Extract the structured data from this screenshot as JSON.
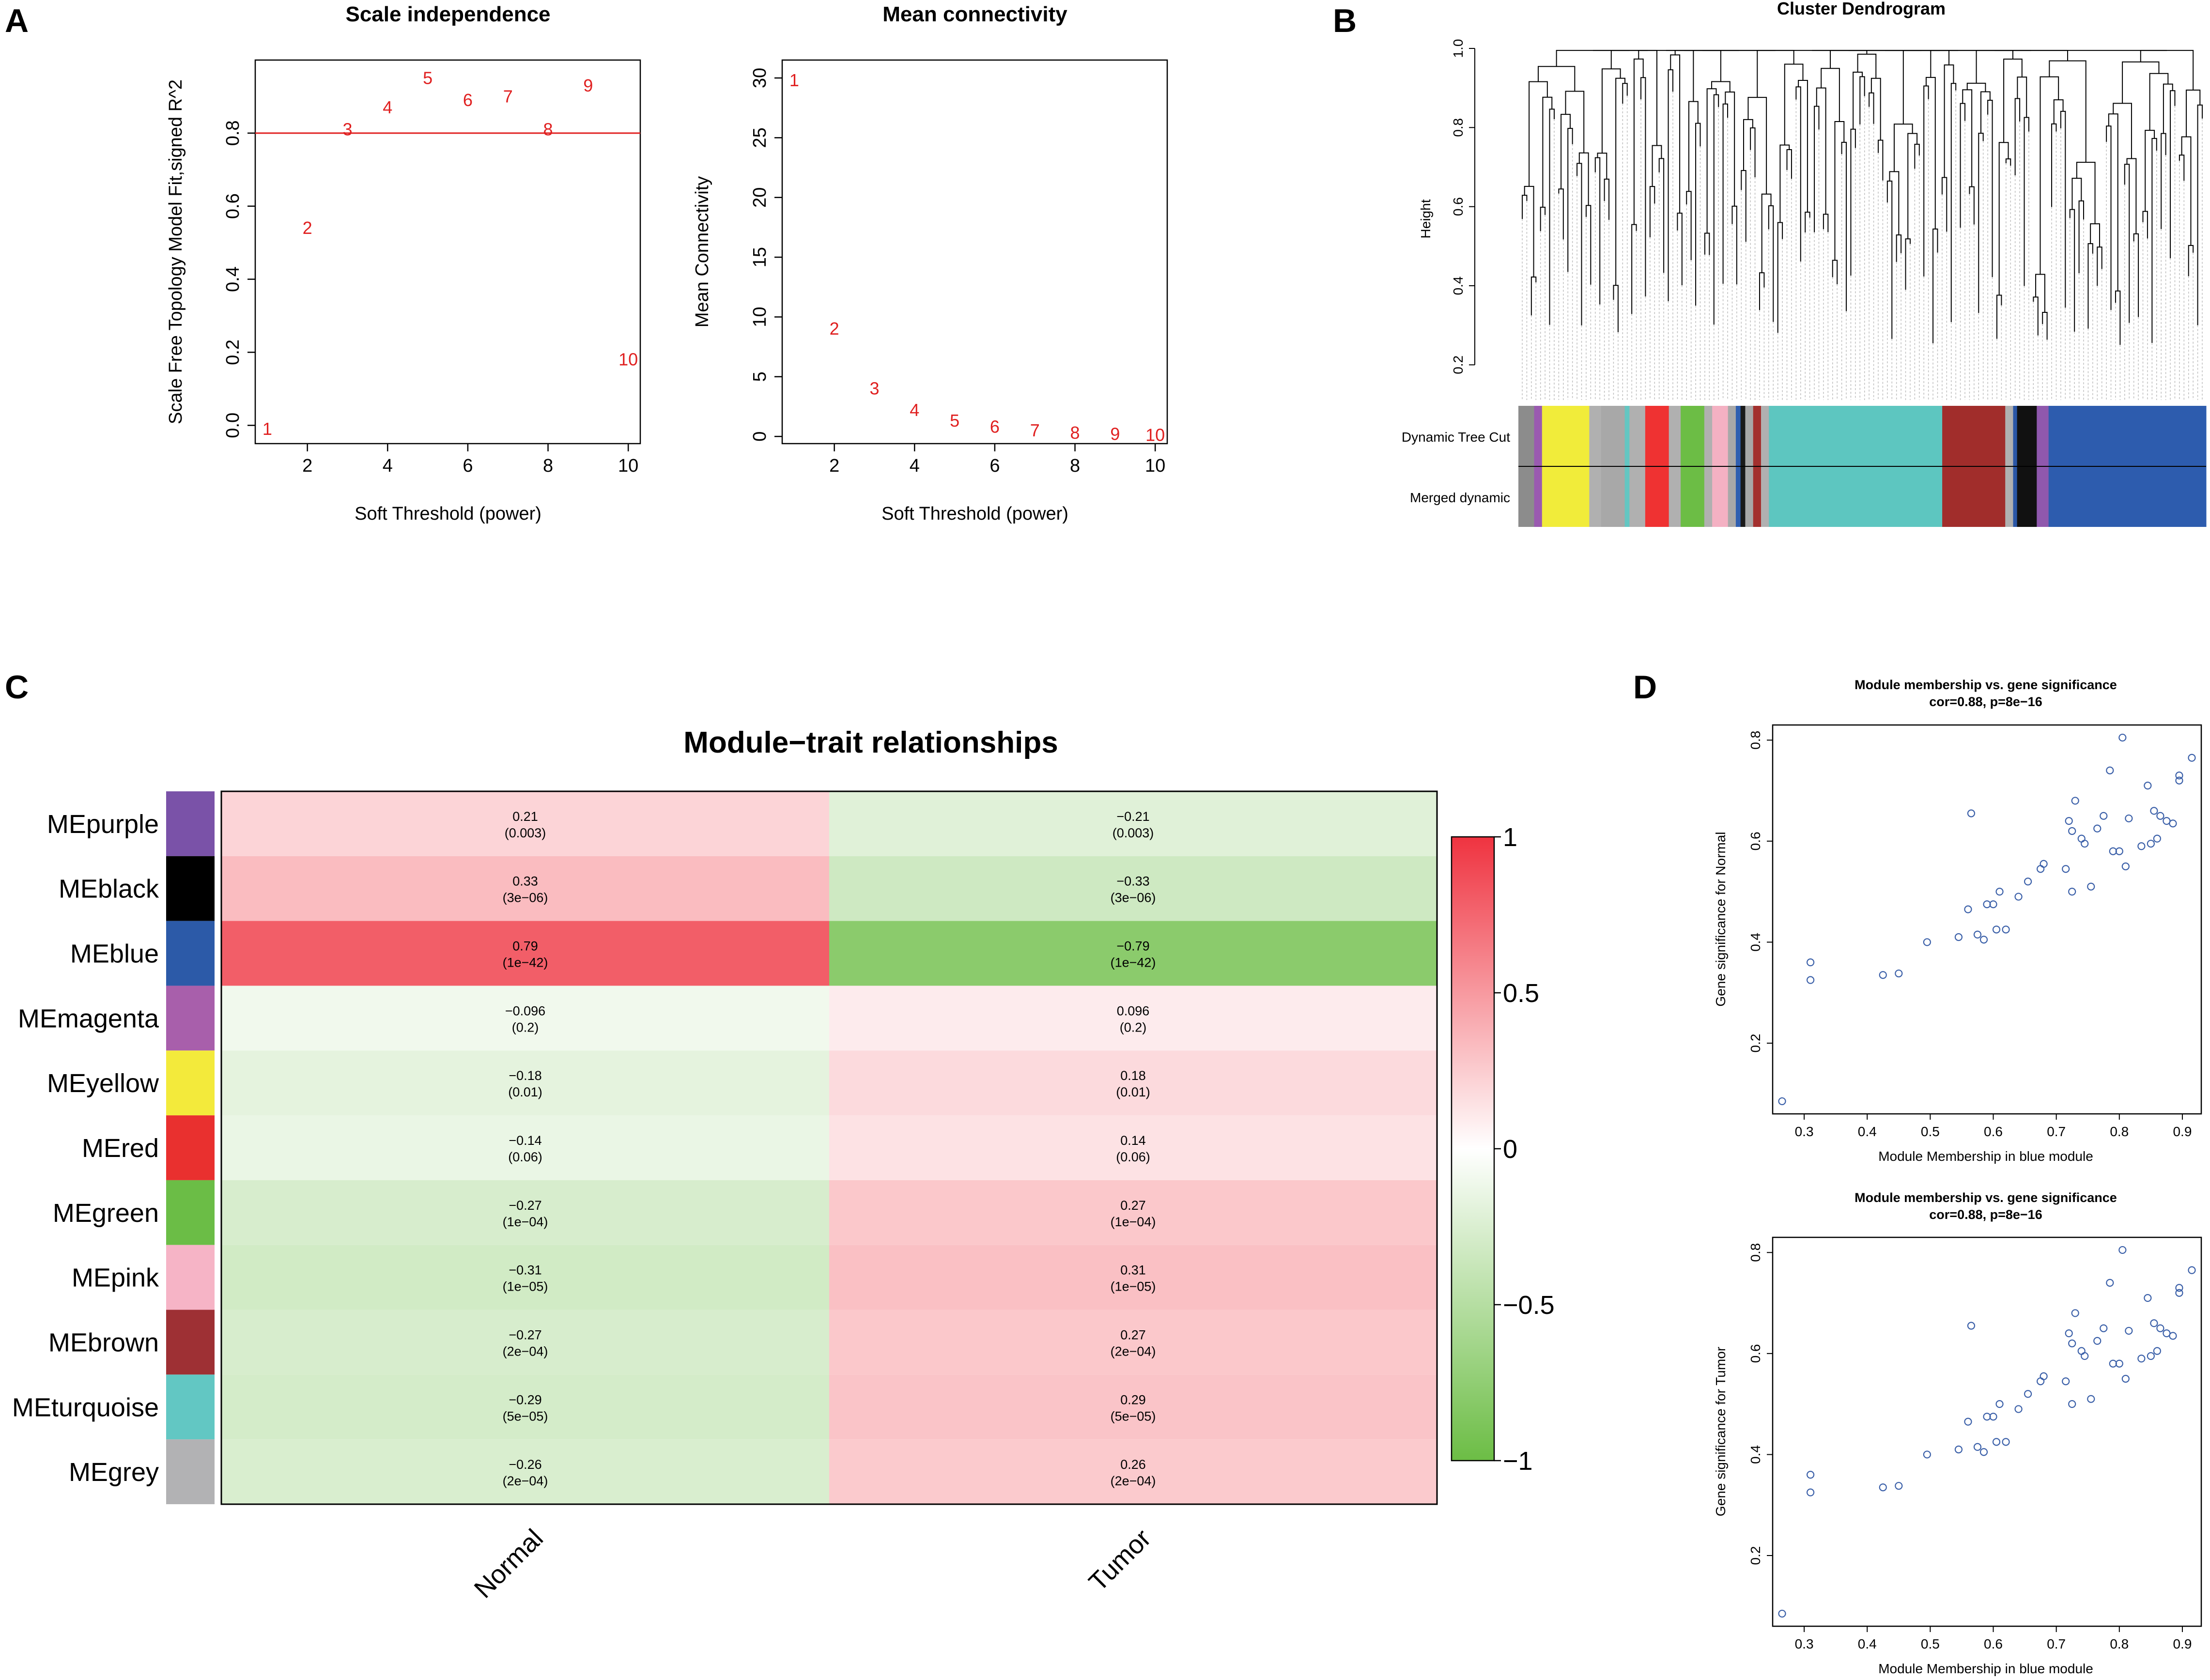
{
  "panels": {
    "a": "A",
    "b": "B",
    "c": "C",
    "d": "D"
  },
  "chart_data": [
    {
      "id": "scale_independence",
      "type": "scatter",
      "title": "Scale independence",
      "xlabel": "Soft Threshold (power)",
      "ylabel": "Scale Free Topology Model Fit,signed R^2",
      "xlim": [
        0.7,
        10.3
      ],
      "ylim": [
        -0.05,
        1.0
      ],
      "xticks": [
        2,
        4,
        6,
        8,
        10
      ],
      "yticks": [
        0.0,
        0.2,
        0.4,
        0.6,
        0.8
      ],
      "hline": 0.8,
      "point_labels": [
        "1",
        "2",
        "3",
        "4",
        "5",
        "6",
        "7",
        "8",
        "9",
        "10"
      ],
      "x": [
        1,
        2,
        3,
        4,
        5,
        6,
        7,
        8,
        9,
        10
      ],
      "y": [
        -0.01,
        0.54,
        0.81,
        0.87,
        0.95,
        0.89,
        0.9,
        0.81,
        0.93,
        0.18
      ]
    },
    {
      "id": "mean_connectivity",
      "type": "scatter",
      "title": "Mean connectivity",
      "xlabel": "Soft Threshold (power)",
      "ylabel": "Mean Connectivity",
      "xlim": [
        0.7,
        10.3
      ],
      "ylim": [
        -0.6,
        31.5
      ],
      "xticks": [
        2,
        4,
        6,
        8,
        10
      ],
      "yticks": [
        0,
        5,
        10,
        15,
        20,
        25,
        30
      ],
      "point_labels": [
        "1",
        "2",
        "3",
        "4",
        "5",
        "6",
        "7",
        "8",
        "9",
        "10"
      ],
      "x": [
        1,
        2,
        3,
        4,
        5,
        6,
        7,
        8,
        9,
        10
      ],
      "y": [
        29.8,
        9.0,
        4.0,
        2.2,
        1.3,
        0.8,
        0.5,
        0.3,
        0.2,
        0.1
      ]
    },
    {
      "id": "cluster_dendrogram",
      "type": "dendrogram",
      "title": "Cluster Dendrogram",
      "ylabel": "Height",
      "yticks": [
        0.2,
        0.4,
        0.6,
        0.8,
        1.0
      ],
      "ylim": [
        0.1,
        1.0
      ],
      "color_rows": [
        "Dynamic Tree Cut",
        "Merged dynamic"
      ],
      "module_blocks": [
        {
          "color": "#8c8c8c",
          "w": 2
        },
        {
          "color": "#9a5ab0",
          "w": 1
        },
        {
          "color": "#f1ec3a",
          "w": 6
        },
        {
          "color": "#b0b0b0",
          "w": 1.5
        },
        {
          "color": "#a8a8a8",
          "w": 3
        },
        {
          "color": "#63c6c2",
          "w": 0.6
        },
        {
          "color": "#b0b0b0",
          "w": 2
        },
        {
          "color": "#ef3232",
          "w": 3
        },
        {
          "color": "#b0b0b0",
          "w": 1.5
        },
        {
          "color": "#6cbd45",
          "w": 3
        },
        {
          "color": "#b0b0b0",
          "w": 1
        },
        {
          "color": "#f4b1c3",
          "w": 2
        },
        {
          "color": "#a8a8a8",
          "w": 1
        },
        {
          "color": "#2f5fb0",
          "w": 0.6
        },
        {
          "color": "#1a1a1a",
          "w": 0.6
        },
        {
          "color": "#a8a8a8",
          "w": 1
        },
        {
          "color": "#a3302e",
          "w": 1
        },
        {
          "color": "#b0b0b0",
          "w": 1
        },
        {
          "color": "#5dc6c0",
          "w": 22
        },
        {
          "color": "#a12d2b",
          "w": 8
        },
        {
          "color": "#b0b0b0",
          "w": 1
        },
        {
          "color": "#2a56a6",
          "w": 0.5
        },
        {
          "color": "#111111",
          "w": 2.5
        },
        {
          "color": "#8f58ad",
          "w": 1.5
        },
        {
          "color": "#2d5cae",
          "w": 20
        }
      ]
    },
    {
      "id": "module_trait",
      "type": "heatmap",
      "title": "Module−trait relationships",
      "columns": [
        "Normal",
        "Tumor"
      ],
      "rows": [
        {
          "name": "MEpurple",
          "color": "#7a52a8",
          "values": [
            0.21,
            -0.21
          ],
          "labels": [
            "0.21",
            "−0.21"
          ],
          "pvals": [
            "(0.003)",
            "(0.003)"
          ]
        },
        {
          "name": "MEblack",
          "color": "#000000",
          "values": [
            0.33,
            -0.33
          ],
          "labels": [
            "0.33",
            "−0.33"
          ],
          "pvals": [
            "(3e−06)",
            "(3e−06)"
          ]
        },
        {
          "name": "MEblue",
          "color": "#2c5aa8",
          "values": [
            0.79,
            -0.79
          ],
          "labels": [
            "0.79",
            "−0.79"
          ],
          "pvals": [
            "(1e−42)",
            "(1e−42)"
          ]
        },
        {
          "name": "MEmagenta",
          "color": "#a85fab",
          "values": [
            -0.096,
            0.096
          ],
          "labels": [
            "−0.096",
            "0.096"
          ],
          "pvals": [
            "(0.2)",
            "(0.2)"
          ]
        },
        {
          "name": "MEyellow",
          "color": "#f3ea3b",
          "values": [
            -0.18,
            0.18
          ],
          "labels": [
            "−0.18",
            "0.18"
          ],
          "pvals": [
            "(0.01)",
            "(0.01)"
          ]
        },
        {
          "name": "MEred",
          "color": "#e9302f",
          "values": [
            -0.14,
            0.14
          ],
          "labels": [
            "−0.14",
            "0.14"
          ],
          "pvals": [
            "(0.06)",
            "(0.06)"
          ]
        },
        {
          "name": "MEgreen",
          "color": "#6bbd46",
          "values": [
            -0.27,
            0.27
          ],
          "labels": [
            "−0.27",
            "0.27"
          ],
          "pvals": [
            "(1e−04)",
            "(1e−04)"
          ]
        },
        {
          "name": "MEpink",
          "color": "#f6b4c6",
          "values": [
            -0.31,
            0.31
          ],
          "labels": [
            "−0.31",
            "0.31"
          ],
          "pvals": [
            "(1e−05)",
            "(1e−05)"
          ]
        },
        {
          "name": "MEbrown",
          "color": "#9e3034",
          "values": [
            -0.27,
            0.27
          ],
          "labels": [
            "−0.27",
            "0.27"
          ],
          "pvals": [
            "(2e−04)",
            "(2e−04)"
          ]
        },
        {
          "name": "MEturquoise",
          "color": "#62c7c3",
          "values": [
            -0.29,
            0.29
          ],
          "labels": [
            "−0.29",
            "0.29"
          ],
          "pvals": [
            "(5e−05)",
            "(5e−05)"
          ]
        },
        {
          "name": "MEgrey",
          "color": "#b2b2b4",
          "values": [
            -0.26,
            0.26
          ],
          "labels": [
            "−0.26",
            "0.26"
          ],
          "pvals": [
            "(2e−04)",
            "(2e−04)"
          ]
        }
      ],
      "legend": {
        "range": [
          -1,
          1
        ],
        "ticks": [
          "1",
          "0.5",
          "0",
          "−0.5",
          "−1"
        ],
        "tick_values": [
          1,
          0.5,
          0,
          -0.5,
          -1
        ],
        "colors": [
          "#6cbd45",
          "#ffffff",
          "#ef3340"
        ]
      }
    },
    {
      "id": "mm_vs_gs_normal",
      "type": "scatter",
      "title": "Module membership vs. gene significance",
      "subtitle": "cor=0.88, p=8e−16",
      "xlabel": "Module Membership in blue module",
      "ylabel": "Gene significance for  Normal",
      "xlim": [
        0.25,
        0.93
      ],
      "ylim": [
        0.06,
        0.83
      ],
      "xticks": [
        0.3,
        0.4,
        0.5,
        0.6,
        0.7,
        0.8,
        0.9
      ],
      "yticks": [
        0.2,
        0.4,
        0.6,
        0.8
      ],
      "points": [
        [
          0.265,
          0.085
        ],
        [
          0.31,
          0.36
        ],
        [
          0.31,
          0.325
        ],
        [
          0.425,
          0.335
        ],
        [
          0.45,
          0.338
        ],
        [
          0.495,
          0.4
        ],
        [
          0.545,
          0.41
        ],
        [
          0.56,
          0.465
        ],
        [
          0.565,
          0.655
        ],
        [
          0.575,
          0.415
        ],
        [
          0.585,
          0.405
        ],
        [
          0.59,
          0.475
        ],
        [
          0.6,
          0.475
        ],
        [
          0.605,
          0.425
        ],
        [
          0.61,
          0.5
        ],
        [
          0.62,
          0.425
        ],
        [
          0.64,
          0.49
        ],
        [
          0.655,
          0.52
        ],
        [
          0.675,
          0.545
        ],
        [
          0.68,
          0.555
        ],
        [
          0.715,
          0.545
        ],
        [
          0.72,
          0.64
        ],
        [
          0.725,
          0.5
        ],
        [
          0.725,
          0.62
        ],
        [
          0.73,
          0.68
        ],
        [
          0.74,
          0.605
        ],
        [
          0.745,
          0.595
        ],
        [
          0.755,
          0.51
        ],
        [
          0.765,
          0.625
        ],
        [
          0.775,
          0.65
        ],
        [
          0.785,
          0.74
        ],
        [
          0.79,
          0.58
        ],
        [
          0.8,
          0.58
        ],
        [
          0.805,
          0.805
        ],
        [
          0.81,
          0.55
        ],
        [
          0.815,
          0.645
        ],
        [
          0.835,
          0.59
        ],
        [
          0.845,
          0.71
        ],
        [
          0.85,
          0.595
        ],
        [
          0.855,
          0.66
        ],
        [
          0.86,
          0.605
        ],
        [
          0.865,
          0.65
        ],
        [
          0.875,
          0.64
        ],
        [
          0.885,
          0.635
        ],
        [
          0.895,
          0.72
        ],
        [
          0.895,
          0.73
        ],
        [
          0.915,
          0.765
        ]
      ]
    },
    {
      "id": "mm_vs_gs_tumor",
      "type": "scatter",
      "title": "Module membership vs. gene significance",
      "subtitle": "cor=0.88, p=8e−16",
      "xlabel": "Module Membership in blue module",
      "ylabel": "Gene significance for  Tumor",
      "xlim": [
        0.25,
        0.93
      ],
      "ylim": [
        0.06,
        0.83
      ],
      "xticks": [
        0.3,
        0.4,
        0.5,
        0.6,
        0.7,
        0.8,
        0.9
      ],
      "yticks": [
        0.2,
        0.4,
        0.6,
        0.8
      ],
      "points": [
        [
          0.265,
          0.085
        ],
        [
          0.31,
          0.36
        ],
        [
          0.31,
          0.325
        ],
        [
          0.425,
          0.335
        ],
        [
          0.45,
          0.338
        ],
        [
          0.495,
          0.4
        ],
        [
          0.545,
          0.41
        ],
        [
          0.56,
          0.465
        ],
        [
          0.565,
          0.655
        ],
        [
          0.575,
          0.415
        ],
        [
          0.585,
          0.405
        ],
        [
          0.59,
          0.475
        ],
        [
          0.6,
          0.475
        ],
        [
          0.605,
          0.425
        ],
        [
          0.61,
          0.5
        ],
        [
          0.62,
          0.425
        ],
        [
          0.64,
          0.49
        ],
        [
          0.655,
          0.52
        ],
        [
          0.675,
          0.545
        ],
        [
          0.68,
          0.555
        ],
        [
          0.715,
          0.545
        ],
        [
          0.72,
          0.64
        ],
        [
          0.725,
          0.5
        ],
        [
          0.725,
          0.62
        ],
        [
          0.73,
          0.68
        ],
        [
          0.74,
          0.605
        ],
        [
          0.745,
          0.595
        ],
        [
          0.755,
          0.51
        ],
        [
          0.765,
          0.625
        ],
        [
          0.775,
          0.65
        ],
        [
          0.785,
          0.74
        ],
        [
          0.79,
          0.58
        ],
        [
          0.8,
          0.58
        ],
        [
          0.805,
          0.805
        ],
        [
          0.81,
          0.55
        ],
        [
          0.815,
          0.645
        ],
        [
          0.835,
          0.59
        ],
        [
          0.845,
          0.71
        ],
        [
          0.85,
          0.595
        ],
        [
          0.855,
          0.66
        ],
        [
          0.86,
          0.605
        ],
        [
          0.865,
          0.65
        ],
        [
          0.875,
          0.64
        ],
        [
          0.885,
          0.635
        ],
        [
          0.895,
          0.72
        ],
        [
          0.895,
          0.73
        ],
        [
          0.915,
          0.765
        ]
      ]
    }
  ]
}
